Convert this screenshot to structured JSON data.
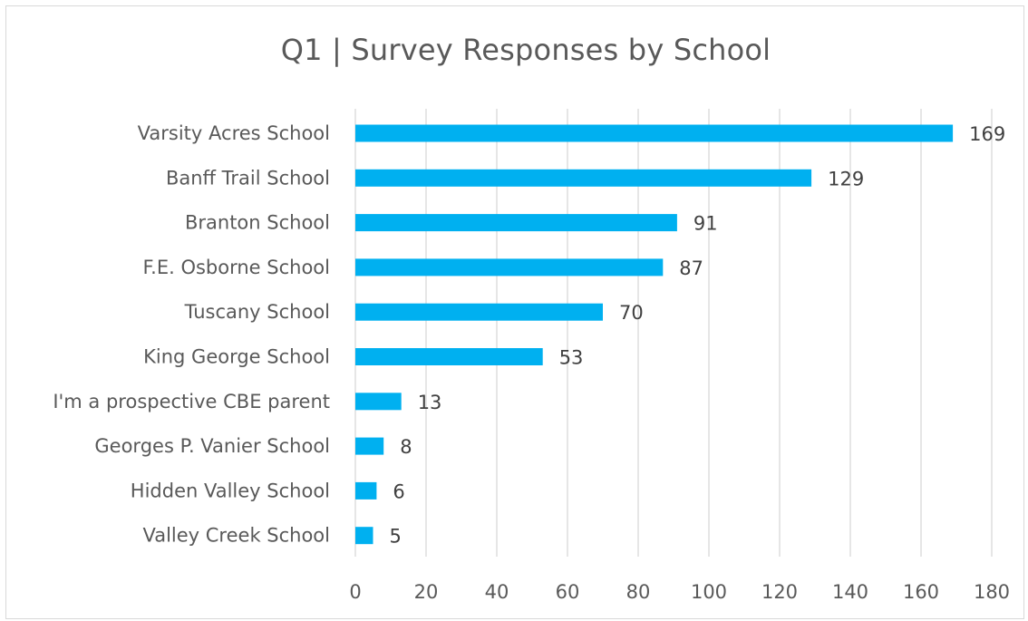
{
  "chart_data": {
    "type": "bar",
    "orientation": "horizontal",
    "title": "Q1 | Survey Responses by School",
    "categories": [
      "Varsity Acres School",
      "Banff Trail School",
      "Branton School",
      "F.E. Osborne School",
      "Tuscany School",
      "King George School",
      "I'm a prospective CBE parent",
      "Georges P. Vanier School",
      "Hidden Valley School",
      "Valley Creek School"
    ],
    "values": [
      169,
      129,
      91,
      87,
      70,
      53,
      13,
      8,
      6,
      5
    ],
    "data_labels": [
      "169",
      "129",
      "91",
      "87",
      "70",
      "53",
      "13",
      "8",
      "6",
      "5"
    ],
    "xlim": [
      0,
      180
    ],
    "x_ticks": [
      "0",
      "20",
      "40",
      "60",
      "80",
      "100",
      "120",
      "140",
      "160",
      "180"
    ],
    "grid": true,
    "legend": "none",
    "bar_color": "#00b0f0",
    "grid_color": "#d9d9d9"
  }
}
